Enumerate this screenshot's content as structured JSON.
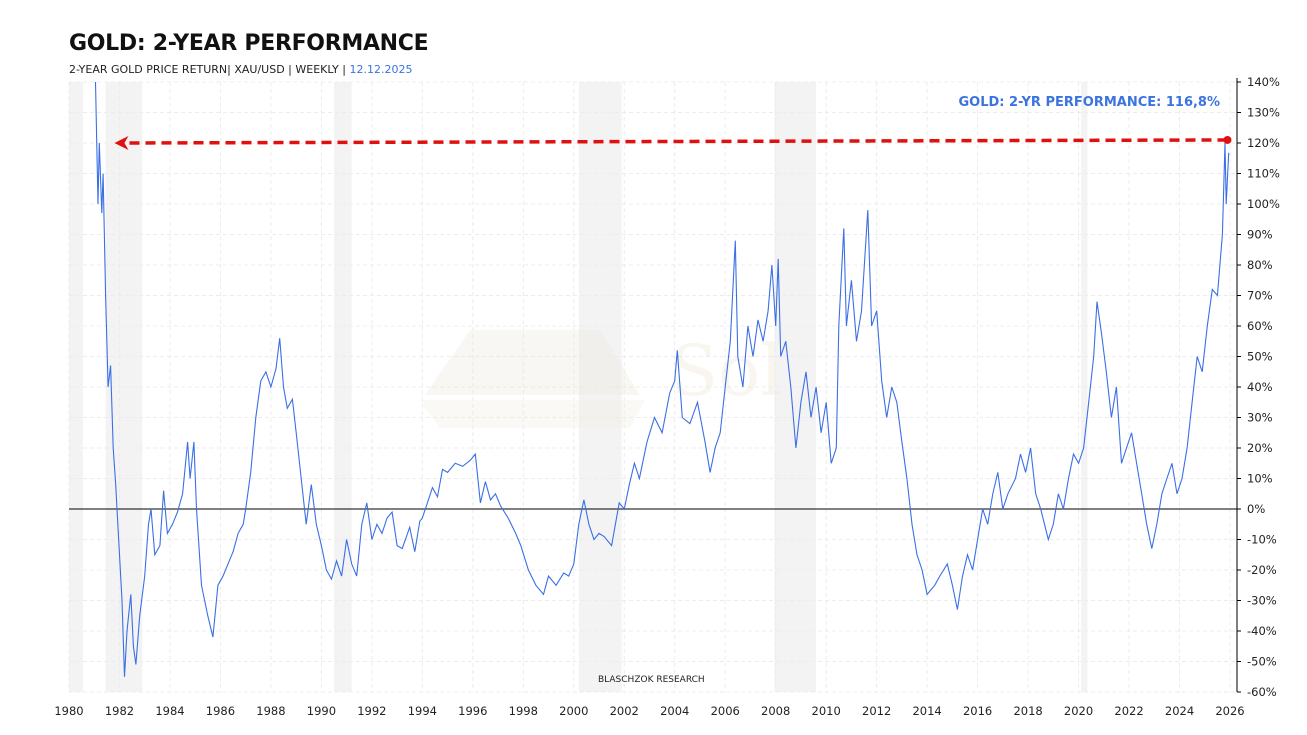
{
  "title": "GOLD: 2-YEAR PERFORMANCE",
  "subtitle_main": "2-YEAR GOLD PRICE RETURN| XAU/USD | WEEKLY | ",
  "subtitle_date": "12.12.2025",
  "watermark": "BLASCHZOK   RESEARCH",
  "colors": {
    "line": "#3b6fe6",
    "arrow": "#e01010",
    "label": "#3b73e0",
    "shade": "#f3f3f3",
    "zero": "#000000"
  },
  "chart_data": {
    "type": "line",
    "title": "GOLD: 2-YEAR PERFORMANCE",
    "xlim": [
      1980,
      2026
    ],
    "ylim": [
      -60,
      140
    ],
    "x_ticks": [
      "1980",
      "1982",
      "1984",
      "1986",
      "1988",
      "1990",
      "1992",
      "1994",
      "1996",
      "1998",
      "2000",
      "2002",
      "2004",
      "2006",
      "2008",
      "2010",
      "2012",
      "2014",
      "2016",
      "2018",
      "2020",
      "2022",
      "2024",
      "2026"
    ],
    "y_ticks": [
      "140%",
      "130%",
      "120%",
      "110%",
      "100%",
      "90%",
      "80%",
      "70%",
      "60%",
      "50%",
      "40%",
      "30%",
      "20%",
      "10%",
      "0%",
      "-10%",
      "-20%",
      "-30%",
      "-40%",
      "-50%",
      "-60%"
    ],
    "y_axis": "right",
    "grid": true,
    "shaded_periods": [
      [
        1980.0,
        1980.55
      ],
      [
        1981.45,
        1982.9
      ],
      [
        1990.5,
        1991.2
      ],
      [
        2000.2,
        2001.9
      ],
      [
        2007.95,
        2009.6
      ],
      [
        2020.1,
        2020.35
      ]
    ],
    "annotation": "GOLD: 2-YR PERFORMANCE: 116,8%",
    "reference_arrow": {
      "from": [
        2025.9,
        121
      ],
      "to": [
        1981.8,
        120
      ]
    },
    "series": [
      {
        "x": [
          1981.05,
          1981.15,
          1981.2,
          1981.3,
          1981.35,
          1981.45,
          1981.55,
          1981.65,
          1981.75,
          1981.85,
          1981.9,
          1982.1,
          1982.2,
          1982.3,
          1982.45,
          1982.55,
          1982.65,
          1982.8,
          1983.0,
          1983.15,
          1983.25,
          1983.4,
          1983.6,
          1983.75,
          1983.9,
          1984.1,
          1984.3,
          1984.5,
          1984.7,
          1984.8,
          1984.95,
          1985.05,
          1985.25,
          1985.5,
          1985.7,
          1985.9,
          1986.1,
          1986.3,
          1986.5,
          1986.7,
          1986.9,
          1987.0,
          1987.2,
          1987.4,
          1987.6,
          1987.8,
          1988.0,
          1988.2,
          1988.35,
          1988.5,
          1988.65,
          1988.85,
          1989.0,
          1989.2,
          1989.4,
          1989.6,
          1989.8,
          1990.0,
          1990.2,
          1990.4,
          1990.6,
          1990.8,
          1991.0,
          1991.2,
          1991.4,
          1991.6,
          1991.8,
          1992.0,
          1992.2,
          1992.4,
          1992.6,
          1992.8,
          1993.0,
          1993.2,
          1993.5,
          1993.7,
          1993.9,
          1994.0,
          1994.2,
          1994.4,
          1994.6,
          1994.8,
          1995.0,
          1995.3,
          1995.6,
          1995.9,
          1996.1,
          1996.3,
          1996.5,
          1996.7,
          1996.9,
          1997.1,
          1997.4,
          1997.7,
          1997.9,
          1998.2,
          1998.5,
          1998.8,
          1999.0,
          1999.3,
          1999.6,
          1999.8,
          2000.0,
          2000.2,
          2000.4,
          2000.6,
          2000.8,
          2001.0,
          2001.2,
          2001.5,
          2001.8,
          2002.0,
          2002.2,
          2002.4,
          2002.6,
          2002.9,
          2003.2,
          2003.5,
          2003.8,
          2004.0,
          2004.1,
          2004.3,
          2004.6,
          2004.9,
          2005.2,
          2005.4,
          2005.6,
          2005.8,
          2006.0,
          2006.2,
          2006.4,
          2006.5,
          2006.7,
          2006.9,
          2007.1,
          2007.3,
          2007.5,
          2007.7,
          2007.85,
          2008.0,
          2008.1,
          2008.2,
          2008.4,
          2008.6,
          2008.8,
          2009.0,
          2009.2,
          2009.4,
          2009.6,
          2009.8,
          2010.0,
          2010.2,
          2010.4,
          2010.5,
          2010.7,
          2010.8,
          2011.0,
          2011.2,
          2011.4,
          2011.65,
          2011.8,
          2012.0,
          2012.2,
          2012.4,
          2012.6,
          2012.8,
          2013.0,
          2013.2,
          2013.4,
          2013.6,
          2013.8,
          2014.0,
          2014.3,
          2014.5,
          2014.8,
          2015.0,
          2015.2,
          2015.4,
          2015.6,
          2015.8,
          2016.0,
          2016.2,
          2016.4,
          2016.6,
          2016.8,
          2017.0,
          2017.2,
          2017.5,
          2017.7,
          2017.9,
          2018.1,
          2018.3,
          2018.5,
          2018.8,
          2019.0,
          2019.2,
          2019.4,
          2019.6,
          2019.8,
          2020.0,
          2020.2,
          2020.4,
          2020.6,
          2020.73,
          2020.9,
          2021.1,
          2021.3,
          2021.5,
          2021.7,
          2021.9,
          2022.1,
          2022.3,
          2022.5,
          2022.7,
          2022.9,
          2023.1,
          2023.3,
          2023.5,
          2023.7,
          2023.9,
          2024.1,
          2024.3,
          2024.5,
          2024.7,
          2024.9,
          2025.1,
          2025.3,
          2025.5,
          2025.7,
          2025.8,
          2025.85,
          2025.95
        ],
        "y": [
          140,
          100,
          120,
          97,
          110,
          70,
          40,
          47,
          20,
          8,
          0,
          -30,
          -55,
          -40,
          -28,
          -45,
          -51,
          -35,
          -22,
          -5,
          0,
          -15,
          -12,
          6,
          -8,
          -5,
          -1,
          5,
          22,
          10,
          22,
          0,
          -25,
          -35,
          -42,
          -25,
          -22,
          -18,
          -14,
          -8,
          -5,
          0,
          12,
          30,
          42,
          45,
          40,
          46,
          56,
          40,
          33,
          36,
          25,
          10,
          -5,
          8,
          -5,
          -12,
          -20,
          -23,
          -17,
          -22,
          -10,
          -18,
          -22,
          -5,
          2,
          -10,
          -5,
          -8,
          -3,
          -1,
          -12,
          -13,
          -6,
          -14,
          -4,
          -3,
          2,
          7,
          4,
          13,
          12,
          15,
          14,
          16,
          18,
          2,
          9,
          3,
          5,
          1,
          -3,
          -8,
          -12,
          -20,
          -25,
          -28,
          -22,
          -25,
          -21,
          -22,
          -18,
          -5,
          3,
          -5,
          -10,
          -8,
          -9,
          -12,
          2,
          0,
          8,
          15,
          10,
          22,
          30,
          25,
          38,
          42,
          52,
          30,
          28,
          35,
          22,
          12,
          20,
          25,
          40,
          55,
          88,
          50,
          40,
          60,
          50,
          62,
          55,
          65,
          80,
          60,
          82,
          50,
          55,
          40,
          20,
          35,
          45,
          30,
          40,
          25,
          35,
          15,
          20,
          60,
          92,
          60,
          75,
          55,
          65,
          98,
          60,
          65,
          42,
          30,
          40,
          35,
          22,
          10,
          -5,
          -15,
          -20,
          -28,
          -25,
          -22,
          -18,
          -25,
          -33,
          -22,
          -15,
          -20,
          -10,
          0,
          -5,
          5,
          12,
          0,
          5,
          10,
          18,
          12,
          20,
          5,
          0,
          -10,
          -5,
          5,
          0,
          10,
          18,
          15,
          20,
          35,
          50,
          68,
          58,
          45,
          30,
          40,
          15,
          20,
          25,
          15,
          5,
          -5,
          -13,
          -5,
          5,
          10,
          15,
          5,
          10,
          20,
          35,
          50,
          45,
          60,
          72,
          70,
          90,
          120,
          100,
          116.8
        ]
      }
    ]
  }
}
